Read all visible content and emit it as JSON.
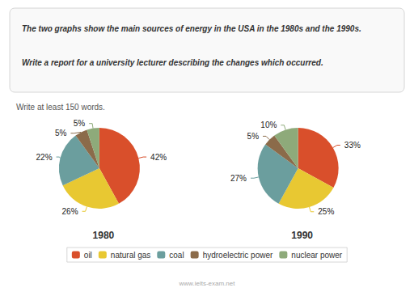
{
  "chart_data": [
    {
      "type": "pie",
      "title": "1980",
      "annotations": [
        "The two graphs show the main sources of energy in the USA in the 1980s and the 1990s.",
        "Write a report for a university lecturer describing the changes which occurred.",
        "Write at least 150 words.",
        "www.ielts-exam.net"
      ],
      "categories": [
        "oil",
        "natural gas",
        "coal",
        "hydroelectric power",
        "nuclear power"
      ],
      "values": [
        42,
        26,
        22,
        5,
        5
      ],
      "value_labels": [
        "42%",
        "26%",
        "22%",
        "5%",
        "5%"
      ],
      "colors": [
        "#D94F2B",
        "#E8C832",
        "#6B9E9E",
        "#8B6B4A",
        "#8EAA7A"
      ],
      "data_labels": true,
      "legend": "bottom"
    },
    {
      "type": "pie",
      "title": "1990",
      "categories": [
        "oil",
        "natural gas",
        "coal",
        "hydroelectric power",
        "nuclear power"
      ],
      "values": [
        33,
        25,
        27,
        5,
        10
      ],
      "value_labels": [
        "33%",
        "25%",
        "27%",
        "5%",
        "10%"
      ],
      "colors": [
        "#D94F2B",
        "#E8C832",
        "#6B9E9E",
        "#8B6B4A",
        "#8EAA7A"
      ],
      "data_labels": true
    }
  ]
}
